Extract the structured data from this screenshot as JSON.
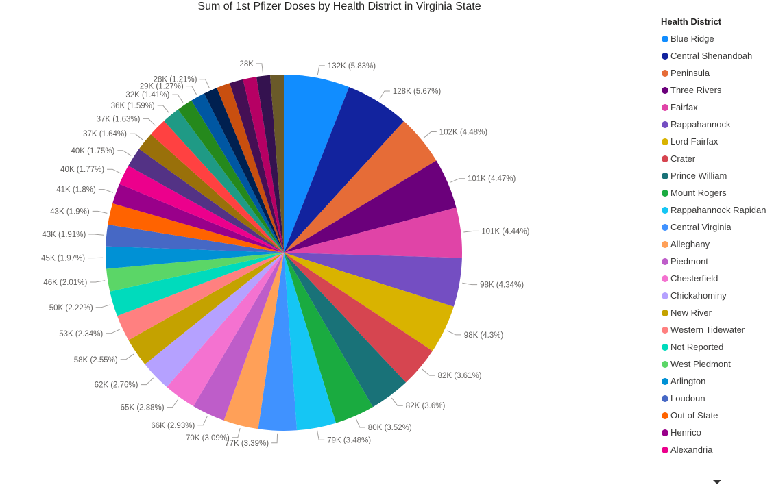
{
  "chart_data": {
    "type": "pie",
    "title": "Sum of 1st Pfizer Doses by Health District in Virginia State",
    "legend_title": "Health District",
    "legend_position": "right",
    "slices": [
      {
        "name": "Blue Ridge",
        "label": "132K (5.83%)",
        "percent": 5.83,
        "color": "#118DFF"
      },
      {
        "name": "Central Shenandoah",
        "label": "128K (5.67%)",
        "percent": 5.67,
        "color": "#12239E"
      },
      {
        "name": "Peninsula",
        "label": "102K (4.48%)",
        "percent": 4.48,
        "color": "#E66C37"
      },
      {
        "name": "Three Rivers",
        "label": "101K (4.47%)",
        "percent": 4.47,
        "color": "#6B007B"
      },
      {
        "name": "Fairfax",
        "label": "101K (4.44%)",
        "percent": 4.44,
        "color": "#E044A7"
      },
      {
        "name": "Rappahannock",
        "label": "98K (4.34%)",
        "percent": 4.34,
        "color": "#744EC2"
      },
      {
        "name": "Lord Fairfax",
        "label": "98K (4.3%)",
        "percent": 4.3,
        "color": "#D9B300"
      },
      {
        "name": "Crater",
        "label": "82K (3.61%)",
        "percent": 3.61,
        "color": "#D64550"
      },
      {
        "name": "Prince William",
        "label": "82K (3.6%)",
        "percent": 3.6,
        "color": "#197278"
      },
      {
        "name": "Mount Rogers",
        "label": "80K (3.52%)",
        "percent": 3.52,
        "color": "#1AAB40"
      },
      {
        "name": "Rappahannock Rapidan",
        "label": "79K (3.48%)",
        "percent": 3.48,
        "color": "#15C6F4"
      },
      {
        "name": "Central Virginia",
        "label": "77K (3.39%)",
        "percent": 3.39,
        "color": "#4092FF"
      },
      {
        "name": "Alleghany",
        "label": "70K (3.09%)",
        "percent": 3.09,
        "color": "#FFA058"
      },
      {
        "name": "Piedmont",
        "label": "66K (2.93%)",
        "percent": 2.93,
        "color": "#BE5DC9"
      },
      {
        "name": "Chesterfield",
        "label": "65K (2.88%)",
        "percent": 2.88,
        "color": "#F472D0"
      },
      {
        "name": "Chickahominy",
        "label": "62K (2.76%)",
        "percent": 2.76,
        "color": "#B5A1FF"
      },
      {
        "name": "New River",
        "label": "58K (2.55%)",
        "percent": 2.55,
        "color": "#C4A200"
      },
      {
        "name": "Western Tidewater",
        "label": "53K (2.34%)",
        "percent": 2.34,
        "color": "#FF8080"
      },
      {
        "name": "Not Reported",
        "label": "50K (2.22%)",
        "percent": 2.22,
        "color": "#00DBBC"
      },
      {
        "name": "West Piedmont",
        "label": "46K (2.01%)",
        "percent": 2.01,
        "color": "#5BD667"
      },
      {
        "name": "Arlington",
        "label": "45K (1.97%)",
        "percent": 1.97,
        "color": "#0091D5"
      },
      {
        "name": "Loudoun",
        "label": "43K (1.91%)",
        "percent": 1.91,
        "color": "#4668C5"
      },
      {
        "name": "Out of State",
        "label": "43K (1.9%)",
        "percent": 1.9,
        "color": "#FF6300"
      },
      {
        "name": "Henrico",
        "label": "41K (1.8%)",
        "percent": 1.8,
        "color": "#99008A"
      },
      {
        "name": "Alexandria",
        "label": "40K (1.77%)",
        "percent": 1.77,
        "color": "#EC008C"
      },
      {
        "name": "",
        "label": "40K (1.75%)",
        "percent": 1.75,
        "color": "#533285"
      },
      {
        "name": "",
        "label": "37K (1.64%)",
        "percent": 1.64,
        "color": "#99700A"
      },
      {
        "name": "",
        "label": "37K (1.63%)",
        "percent": 1.63,
        "color": "#FF4141"
      },
      {
        "name": "",
        "label": "36K (1.59%)",
        "percent": 1.59,
        "color": "#1F9A85"
      },
      {
        "name": "",
        "label": "32K (1.41%)",
        "percent": 1.41,
        "color": "#25891C"
      },
      {
        "name": "",
        "label": "29K (1.27%)",
        "percent": 1.27,
        "color": "#0057A2"
      },
      {
        "name": "",
        "label": "28K (1.21%)",
        "percent": 1.21,
        "color": "#002050"
      },
      {
        "name": "",
        "label": "",
        "percent": 1.2,
        "color": "#C94F0F"
      },
      {
        "name": "",
        "label": "",
        "percent": 1.2,
        "color": "#450F54"
      },
      {
        "name": "",
        "label": "",
        "percent": 1.2,
        "color": "#B60064"
      },
      {
        "name": "",
        "label": "28K",
        "percent": 1.2,
        "color": "#34124F"
      },
      {
        "name": "",
        "label": "",
        "percent": 1.2,
        "color": "#6A5A29"
      }
    ]
  }
}
